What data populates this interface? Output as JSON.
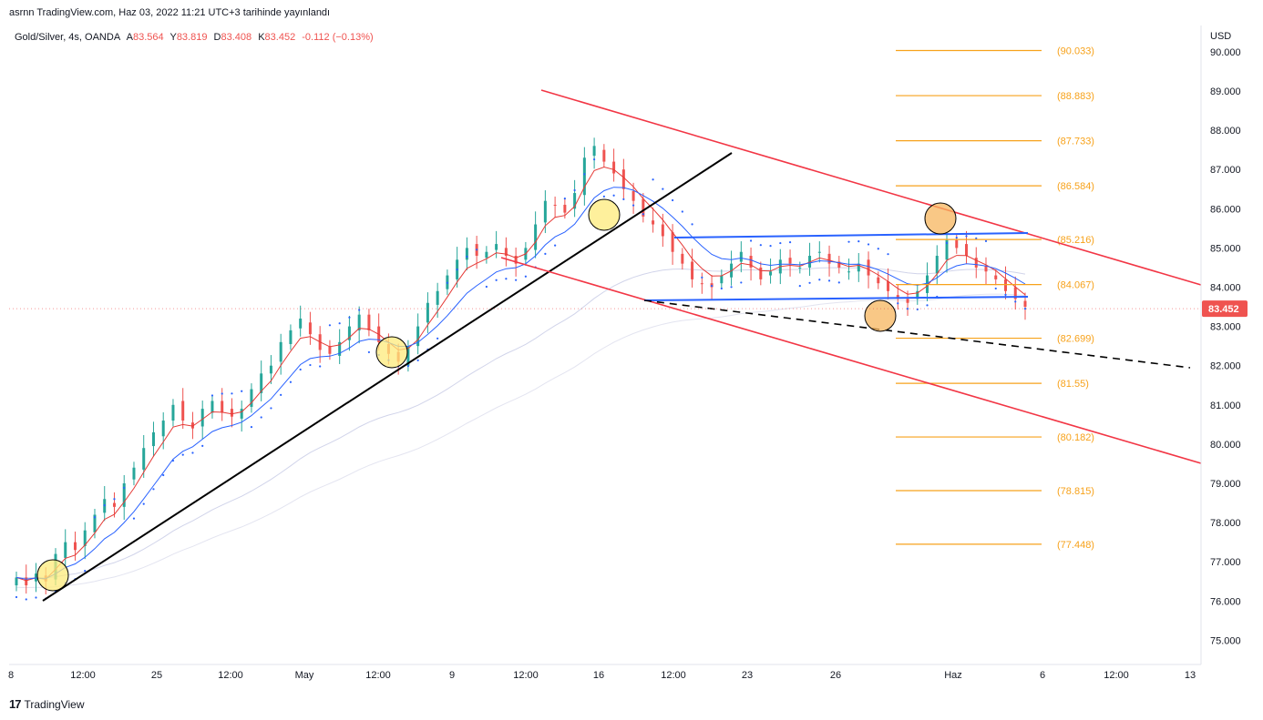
{
  "publication": "asrnn TradingView.com, Haz 03, 2022 11:21 UTC+3 tarihinde yayınlandı",
  "legend": {
    "symbol": "Gold/Silver, 4s, OANDA",
    "o_label": "A",
    "o": "83.564",
    "h_label": "Y",
    "h": "83.819",
    "l_label": "D",
    "l": "83.408",
    "c_label": "K",
    "c": "83.452",
    "change": "-0.112 (−0.13%)"
  },
  "currency": "USD",
  "brand": "TradingView",
  "colors": {
    "up": "#26a69a",
    "down": "#ef5350",
    "ema_fast": "#e53935",
    "ema_slow": "#2962ff",
    "fib": "#f7a21b",
    "channel": "#f23645",
    "range": "#2962ff",
    "trend": "#000000",
    "sar": "#2962ff",
    "price_tag": "#ef5350"
  },
  "chart_data": {
    "type": "candlestick",
    "price_axis": {
      "ticks": [
        "90.000",
        "89.000",
        "88.000",
        "87.000",
        "86.000",
        "85.000",
        "84.000",
        "83.000",
        "82.000",
        "81.000",
        "80.000",
        "79.000",
        "78.000",
        "77.000",
        "76.000",
        "75.000"
      ],
      "range": [
        74.3,
        90.6
      ],
      "last_price": "83.452"
    },
    "time_axis": {
      "ticks": [
        "8",
        "12:00",
        "25",
        "12:00",
        "May",
        "12:00",
        "9",
        "12:00",
        "16",
        "12:00",
        "23",
        "26",
        "Haz",
        "6",
        "12:00",
        "13"
      ]
    },
    "fibonacci_levels": [
      "90.033",
      "88.883",
      "87.733",
      "86.584",
      "85.216",
      "84.067",
      "82.699",
      "81.55",
      "80.182",
      "78.815",
      "77.448"
    ],
    "fibonacci_values": [
      90.033,
      88.883,
      87.733,
      86.584,
      85.216,
      84.067,
      82.699,
      81.55,
      80.182,
      78.815,
      77.448
    ],
    "ohlc_close_path": [
      76.6,
      76.4,
      76.7,
      76.5,
      77.2,
      77.5,
      77.3,
      77.8,
      78.2,
      78.6,
      78.4,
      79.0,
      79.4,
      79.9,
      80.3,
      80.6,
      81.0,
      80.6,
      80.4,
      80.9,
      81.1,
      80.8,
      80.7,
      80.9,
      81.4,
      81.8,
      82.0,
      82.6,
      82.9,
      83.2,
      82.8,
      82.4,
      82.3,
      82.6,
      83.0,
      83.3,
      82.9,
      82.6,
      82.3,
      82.1,
      82.5,
      83.0,
      83.6,
      83.9,
      84.3,
      84.7,
      85.0,
      84.8,
      84.9,
      85.1,
      84.8,
      84.6,
      85.0,
      85.6,
      86.2,
      86.1,
      85.9,
      86.4,
      87.3,
      87.6,
      87.2,
      86.9,
      86.5,
      86.2,
      85.8,
      85.6,
      85.3,
      84.9,
      84.6,
      84.2,
      84.1,
      84.0,
      84.3,
      84.6,
      84.9,
      84.5,
      84.2,
      84.4,
      84.7,
      84.6,
      84.5,
      84.8,
      84.9,
      84.6,
      84.5,
      84.4,
      84.6,
      84.3,
      84.1,
      83.9,
      83.7,
      83.6,
      83.9,
      84.3,
      84.8,
      85.2,
      85.0,
      84.8,
      84.5,
      84.4,
      84.2,
      83.9,
      83.7,
      83.5
    ]
  }
}
